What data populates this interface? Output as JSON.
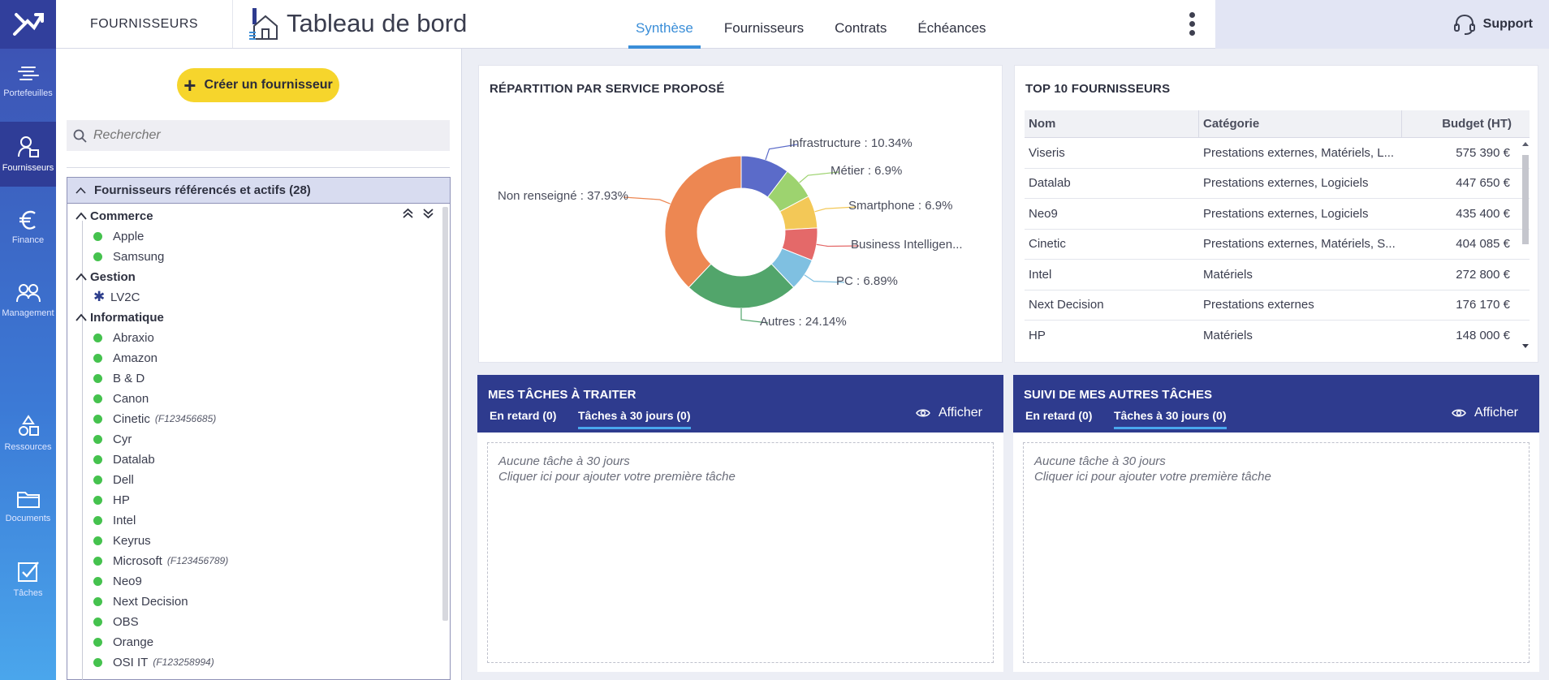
{
  "rail": {
    "items": [
      {
        "label": "Portefeuilles",
        "icon": "portfolio-icon"
      },
      {
        "label": "Fournisseurs",
        "icon": "supplier-icon",
        "active": true
      },
      {
        "label": "Finance",
        "icon": "euro-icon"
      },
      {
        "label": "Management",
        "icon": "team-icon"
      },
      {
        "label": "Ressources",
        "icon": "shapes-icon"
      },
      {
        "label": "Documents",
        "icon": "folder-icon"
      },
      {
        "label": "Tâches",
        "icon": "task-check-icon"
      }
    ]
  },
  "header": {
    "module": "FOURNISSEURS",
    "title": "Tableau de bord",
    "tabs": [
      "Synthèse",
      "Fournisseurs",
      "Contrats",
      "Échéances"
    ],
    "active_tab": "Synthèse",
    "support": "Support"
  },
  "sidebar": {
    "create_button": "Créer un fournisseur",
    "search_placeholder": "Rechercher",
    "group_title": "Fournisseurs référencés et actifs (28)",
    "categories": [
      {
        "name": "Commerce",
        "items": [
          {
            "name": "Apple",
            "code": ""
          },
          {
            "name": "Samsung",
            "code": ""
          }
        ]
      },
      {
        "name": "Gestion",
        "items": [
          {
            "name": "LV2C",
            "code": "",
            "star": true
          }
        ]
      },
      {
        "name": "Informatique",
        "items": [
          {
            "name": "Abraxio",
            "code": ""
          },
          {
            "name": "Amazon",
            "code": ""
          },
          {
            "name": "B & D",
            "code": ""
          },
          {
            "name": "Canon",
            "code": ""
          },
          {
            "name": "Cinetic",
            "code": "(F123456685)"
          },
          {
            "name": "Cyr",
            "code": ""
          },
          {
            "name": "Datalab",
            "code": ""
          },
          {
            "name": "Dell",
            "code": ""
          },
          {
            "name": "HP",
            "code": ""
          },
          {
            "name": "Intel",
            "code": ""
          },
          {
            "name": "Keyrus",
            "code": ""
          },
          {
            "name": "Microsoft",
            "code": "(F123456789)"
          },
          {
            "name": "Neo9",
            "code": ""
          },
          {
            "name": "Next Decision",
            "code": ""
          },
          {
            "name": "OBS",
            "code": ""
          },
          {
            "name": "Orange",
            "code": ""
          },
          {
            "name": "OSI IT",
            "code": "(F123258994)"
          }
        ]
      }
    ]
  },
  "service_card": {
    "title": "RÉPARTITION PAR SERVICE PROPOSÉ"
  },
  "chart_data": {
    "type": "pie",
    "donut": true,
    "categories": [
      "Infrastructure",
      "Métier",
      "Smartphone",
      "Business Intelligen...",
      "PC",
      "Autres",
      "Non renseigné"
    ],
    "values": [
      10.34,
      6.9,
      6.9,
      6.9,
      6.89,
      24.14,
      37.93
    ],
    "labels": [
      "Infrastructure : 10.34%",
      "Métier : 6.9%",
      "Smartphone : 6.9%",
      "Business Intelligen...",
      "PC : 6.89%",
      "Autres : 24.14%",
      "Non renseigné : 37.93%"
    ],
    "colors": [
      "#5b6bc9",
      "#9dd36f",
      "#f3c857",
      "#e46969",
      "#7fc0e1",
      "#52a56b",
      "#ed8752"
    ]
  },
  "top10": {
    "title": "TOP 10 FOURNISSEURS",
    "columns": [
      "Nom",
      "Catégorie",
      "Budget (HT)"
    ],
    "rows": [
      [
        "Viseris",
        "Prestations externes, Matériels, L...",
        "575 390 €"
      ],
      [
        "Datalab",
        "Prestations externes, Logiciels",
        "447 650 €"
      ],
      [
        "Neo9",
        "Prestations externes, Logiciels",
        "435 400 €"
      ],
      [
        "Cinetic",
        "Prestations externes, Matériels, S...",
        "404 085 €"
      ],
      [
        "Intel",
        "Matériels",
        "272 800 €"
      ],
      [
        "Next Decision",
        "Prestations externes",
        "176 170 €"
      ],
      [
        "HP",
        "Matériels",
        "148 000 €"
      ]
    ]
  },
  "tasks_mine": {
    "title": "MES TÂCHES À TRAITER",
    "tab_late": "En retard (0)",
    "tab_30": "Tâches à 30 jours (0)",
    "show": "Afficher",
    "empty_line1": "Aucune tâche à 30 jours",
    "empty_line2": "Cliquer ici pour ajouter votre première tâche"
  },
  "tasks_other": {
    "title": "SUIVI DE MES AUTRES TÂCHES",
    "tab_late": "En retard (0)",
    "tab_30": "Tâches à 30 jours (0)",
    "show": "Afficher",
    "empty_line1": "Aucune tâche à 30 jours",
    "empty_line2": "Cliquer ici pour ajouter votre première tâche"
  }
}
